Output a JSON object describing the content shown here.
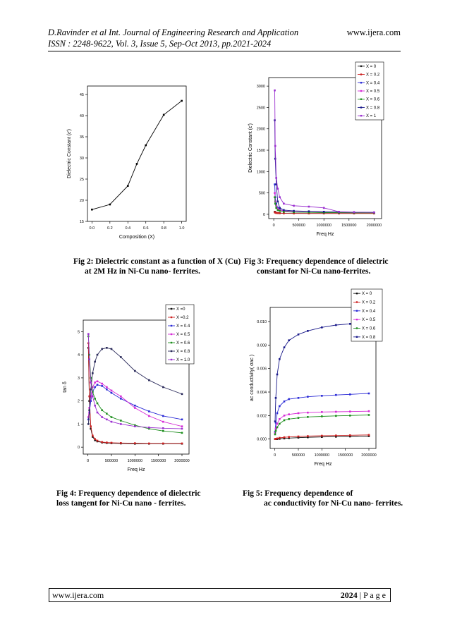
{
  "header": {
    "line1": "D.Ravinder et al Int. Journal of Engineering Research and Application",
    "site": "www.ijera.com",
    "line2": "ISSN : 2248-9622, Vol. 3, Issue 5, Sep-Oct 2013, pp.2021-2024"
  },
  "footer": {
    "site": "www.ijera.com",
    "page": "2024",
    "page_label": "| P a g e"
  },
  "captions": {
    "fig2": [
      "Fig 2: Dielectric constant as a function of X (Cu)",
      "at 2M Hz in Ni-Cu nano- ferrites."
    ],
    "fig3": [
      "Fig 3: Frequency dependence of dielectric",
      "constant for Ni-Cu nano-ferrites."
    ],
    "fig4": [
      "Fig 4: Frequency dependence of dielectric",
      "loss tangent for Ni-Cu nano - ferrites."
    ],
    "fig5": [
      "Fig 5: Frequency dependence of",
      "ac conductivity for Ni-Cu nano- ferrites."
    ]
  },
  "chart_data": [
    {
      "id": "fig2",
      "type": "line",
      "xlabel": "Composition (X)",
      "ylabel": "Dielectric Constant (ε′)",
      "xlim": [
        -0.05,
        1.05
      ],
      "ylim": [
        15,
        47
      ],
      "xticks": [
        0.0,
        0.2,
        0.4,
        0.6,
        0.8,
        1.0
      ],
      "xtick_labels": [
        "0.0",
        "0.2",
        "0.4",
        "0.6",
        "0.8",
        "1.0"
      ],
      "yticks": [
        15,
        20,
        25,
        30,
        35,
        40,
        45
      ],
      "x": [
        0.0,
        0.2,
        0.4,
        0.5,
        0.6,
        0.8,
        1.0
      ],
      "values": [
        17.8,
        19.0,
        23.4,
        28.6,
        33.0,
        40.2,
        43.5
      ],
      "color": "#000000"
    },
    {
      "id": "fig3",
      "type": "line",
      "xlabel": "Freq Hz",
      "ylabel": "Dielectric Constant (ε′)",
      "xlim": [
        -100000,
        2150000
      ],
      "ylim": [
        -100,
        3200
      ],
      "xticks": [
        0,
        500000,
        1000000,
        1500000,
        2000000
      ],
      "xtick_labels": [
        "0",
        "500000",
        "1000000",
        "1500000",
        "2000000"
      ],
      "yticks": [
        0,
        500,
        1000,
        1500,
        2000,
        2500,
        3000
      ],
      "legend": "top-right",
      "x": [
        20000,
        30000,
        50000,
        80000,
        120000,
        200000,
        400000,
        700000,
        1000000,
        1300000,
        1600000,
        2000000
      ],
      "series": [
        {
          "name": "X = 0",
          "color": "#222222",
          "values": [
            60,
            45,
            35,
            30,
            28,
            25,
            22,
            20,
            20,
            20,
            20,
            20
          ]
        },
        {
          "name": "X = 0.2",
          "color": "#cc2222",
          "values": [
            50,
            40,
            32,
            28,
            25,
            22,
            20,
            20,
            20,
            20,
            20,
            20
          ]
        },
        {
          "name": "X = 0.4",
          "color": "#2b2bd6",
          "values": [
            700,
            400,
            250,
            150,
            110,
            80,
            60,
            50,
            45,
            42,
            40,
            38
          ]
        },
        {
          "name": "X = 0.5",
          "color": "#d62bd6",
          "values": [
            500,
            300,
            200,
            130,
            100,
            80,
            60,
            50,
            45,
            42,
            40,
            38
          ]
        },
        {
          "name": "X = 0.6",
          "color": "#1f8f1f",
          "values": [
            400,
            250,
            150,
            100,
            80,
            60,
            50,
            45,
            40,
            38,
            36,
            35
          ]
        },
        {
          "name": "X = 0.8",
          "color": "#1a1a8a",
          "values": [
            2200,
            1300,
            700,
            300,
            150,
            100,
            80,
            70,
            60,
            55,
            50,
            45
          ]
        },
        {
          "name": "X = 1",
          "color": "#9b30d0",
          "values": [
            2900,
            1600,
            850,
            600,
            400,
            250,
            200,
            180,
            150,
            60,
            50,
            45
          ]
        }
      ]
    },
    {
      "id": "fig4",
      "type": "line",
      "xlabel": "Freq Hz",
      "ylabel": "tan δ",
      "xlim": [
        -100000,
        2150000
      ],
      "ylim": [
        -0.3,
        5.5
      ],
      "xticks": [
        0,
        500000,
        1000000,
        1500000,
        2000000
      ],
      "xtick_labels": [
        "0",
        "500000",
        "1000000",
        "1500000",
        "2000000"
      ],
      "yticks": [
        0,
        1,
        2,
        3,
        4,
        5
      ],
      "legend": "top-right",
      "x": [
        10000,
        30000,
        60000,
        100000,
        150000,
        200000,
        300000,
        400000,
        500000,
        700000,
        1000000,
        1300000,
        1600000,
        2000000
      ],
      "series": [
        {
          "name": "X =0",
          "color": "#111111",
          "values": [
            4.3,
            2.0,
            0.8,
            0.45,
            0.3,
            0.25,
            0.2,
            0.18,
            0.17,
            0.16,
            0.15,
            0.15,
            0.15,
            0.15
          ]
        },
        {
          "name": "X =0.2",
          "color": "#cc2222",
          "values": [
            4.5,
            2.2,
            0.9,
            0.5,
            0.35,
            0.28,
            0.22,
            0.2,
            0.19,
            0.18,
            0.17,
            0.16,
            0.16,
            0.16
          ]
        },
        {
          "name": "X = 0.4",
          "color": "#2b2bd6",
          "values": [
            1.2,
            1.5,
            2.0,
            2.4,
            2.6,
            2.7,
            2.65,
            2.5,
            2.35,
            2.1,
            1.8,
            1.55,
            1.35,
            1.2
          ]
        },
        {
          "name": "X = 0.5",
          "color": "#d62bd6",
          "values": [
            1.3,
            1.7,
            2.2,
            2.6,
            2.8,
            2.85,
            2.75,
            2.6,
            2.45,
            2.2,
            1.7,
            1.35,
            1.1,
            0.9
          ]
        },
        {
          "name": "X = 0.6",
          "color": "#1f8f1f",
          "values": [
            4.8,
            4.0,
            3.0,
            2.4,
            2.1,
            1.9,
            1.6,
            1.45,
            1.3,
            1.15,
            0.95,
            0.8,
            0.7,
            0.62
          ]
        },
        {
          "name": "X = 0.8",
          "color": "#2a2a5a",
          "values": [
            1.0,
            1.6,
            2.5,
            3.2,
            3.7,
            4.0,
            4.25,
            4.3,
            4.25,
            3.9,
            3.3,
            2.9,
            2.6,
            2.3
          ]
        },
        {
          "name": "X = 1.0",
          "color": "#9b30d0",
          "values": [
            4.9,
            3.8,
            2.8,
            2.2,
            1.8,
            1.5,
            1.3,
            1.2,
            1.1,
            1.0,
            0.9,
            0.85,
            0.82,
            0.8
          ]
        }
      ]
    },
    {
      "id": "fig5",
      "type": "line",
      "xlabel": "Freq Hz",
      "ylabel": "ac conductivity( σac )",
      "xlim": [
        -100000,
        2150000
      ],
      "ylim": [
        -0.0008,
        0.0112
      ],
      "xticks": [
        0,
        500000,
        1000000,
        1500000,
        2000000
      ],
      "xtick_labels": [
        "0",
        "500000",
        "1000000",
        "1500000",
        "2000000"
      ],
      "yticks": [
        0.0,
        0.002,
        0.004,
        0.006,
        0.008,
        0.01
      ],
      "ytick_labels": [
        "0.000",
        "0.002",
        "0.004",
        "0.006",
        "0.008",
        "0.010"
      ],
      "legend": "top-right",
      "x": [
        5000,
        20000,
        50000,
        100000,
        200000,
        300000,
        500000,
        700000,
        1000000,
        1300000,
        1600000,
        2000000
      ],
      "series": [
        {
          "name": "X = 0",
          "color": "#111111",
          "values": [
            0.0,
            0.0,
            0.0,
            2e-05,
            5e-05,
            8e-05,
            0.00012,
            0.00015,
            0.00018,
            0.0002,
            0.00022,
            0.00025
          ]
        },
        {
          "name": "X = 0.2",
          "color": "#cc2222",
          "values": [
            0.0,
            2e-05,
            5e-05,
            0.0001,
            0.00015,
            0.00018,
            0.00022,
            0.00025,
            0.00028,
            0.0003,
            0.00032,
            0.00035
          ]
        },
        {
          "name": "X = 0.4",
          "color": "#2b2bd6",
          "values": [
            0.0006,
            0.0014,
            0.0022,
            0.0028,
            0.0032,
            0.0034,
            0.0035,
            0.0036,
            0.00368,
            0.00375,
            0.0038,
            0.00388
          ]
        },
        {
          "name": "X = 0.5",
          "color": "#d62bd6",
          "values": [
            0.0005,
            0.0009,
            0.0013,
            0.0017,
            0.002,
            0.0021,
            0.0022,
            0.00225,
            0.0023,
            0.00232,
            0.00234,
            0.00237
          ]
        },
        {
          "name": "X = 0.6",
          "color": "#1f8f1f",
          "values": [
            0.0004,
            0.0007,
            0.001,
            0.0013,
            0.0016,
            0.0017,
            0.0018,
            0.00188,
            0.00193,
            0.00197,
            0.002,
            0.00205
          ]
        },
        {
          "name": "X = 0.8",
          "color": "#1a1a8a",
          "values": [
            0.0015,
            0.0035,
            0.0055,
            0.0068,
            0.0078,
            0.0084,
            0.0089,
            0.0092,
            0.0095,
            0.0097,
            0.0098,
            0.01
          ]
        }
      ]
    }
  ]
}
